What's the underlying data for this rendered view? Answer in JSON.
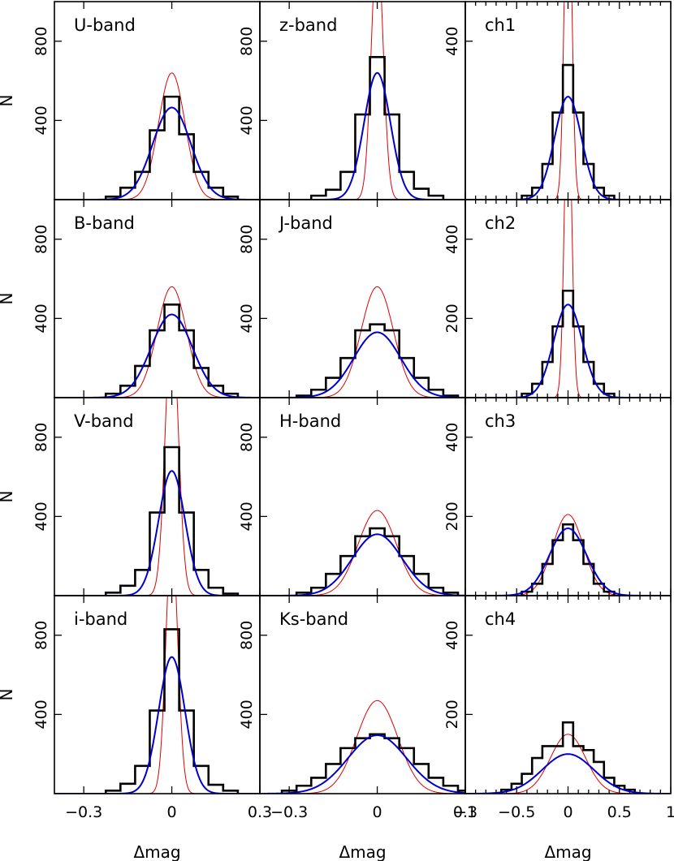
{
  "colors": {
    "histogram": "#000000",
    "fit_blue": "#0000cc",
    "fit_red": "#e00000",
    "background": "#ffffff"
  },
  "axis_labels": {
    "x": "Δmag",
    "y": "N"
  },
  "chart_data": [
    {
      "type": "histogram",
      "label": "U-band",
      "column": 0,
      "row": 0,
      "xlim": [
        -0.4,
        0.3
      ],
      "ylim": [
        0,
        1000
      ],
      "yticks": [
        400,
        800
      ],
      "xticks": [
        -0.3,
        0,
        0.3
      ],
      "xtick_labels": [
        "−0.3",
        "0",
        "0.3"
      ],
      "bin_edges": [
        -0.225,
        -0.175,
        -0.125,
        -0.075,
        -0.025,
        0.025,
        0.075,
        0.125,
        0.175,
        0.225
      ],
      "counts": [
        15,
        60,
        140,
        350,
        520,
        330,
        140,
        60,
        15
      ],
      "blue_fit": {
        "amp": 465,
        "sigma": 0.065
      },
      "red_fit": {
        "amp": 640,
        "sigma": 0.045
      }
    },
    {
      "type": "histogram",
      "label": "B-band",
      "column": 0,
      "row": 1,
      "xlim": [
        -0.4,
        0.3
      ],
      "ylim": [
        0,
        1000
      ],
      "yticks": [
        400,
        800
      ],
      "xticks": [
        -0.3,
        0,
        0.3
      ],
      "xtick_labels": [
        "−0.3",
        "0",
        "0.3"
      ],
      "bin_edges": [
        -0.225,
        -0.175,
        -0.125,
        -0.075,
        -0.025,
        0.025,
        0.075,
        0.125,
        0.175,
        0.225
      ],
      "counts": [
        20,
        60,
        160,
        340,
        470,
        340,
        150,
        60,
        20
      ],
      "blue_fit": {
        "amp": 420,
        "sigma": 0.07
      },
      "red_fit": {
        "amp": 560,
        "sigma": 0.05
      }
    },
    {
      "type": "histogram",
      "label": "V-band",
      "column": 0,
      "row": 2,
      "xlim": [
        -0.4,
        0.3
      ],
      "ylim": [
        0,
        1000
      ],
      "yticks": [
        400,
        800
      ],
      "xticks": [
        -0.3,
        0,
        0.3
      ],
      "xtick_labels": [
        "−0.3",
        "0",
        "0.3"
      ],
      "bin_edges": [
        -0.225,
        -0.175,
        -0.125,
        -0.075,
        -0.025,
        0.025,
        0.075,
        0.125,
        0.175,
        0.225
      ],
      "counts": [
        15,
        50,
        130,
        420,
        750,
        420,
        130,
        40,
        10
      ],
      "blue_fit": {
        "amp": 630,
        "sigma": 0.045
      },
      "red_fit": {
        "amp": 1400,
        "sigma": 0.022
      }
    },
    {
      "type": "histogram",
      "label": "i-band",
      "column": 0,
      "row": 3,
      "xlim": [
        -0.4,
        0.3
      ],
      "ylim": [
        0,
        1000
      ],
      "yticks": [
        400,
        800
      ],
      "xticks": [
        -0.3,
        0,
        0.3
      ],
      "xtick_labels": [
        "−0.3",
        "0",
        "0.3"
      ],
      "bin_edges": [
        -0.225,
        -0.175,
        -0.125,
        -0.075,
        -0.025,
        0.025,
        0.075,
        0.125,
        0.175,
        0.225
      ],
      "counts": [
        15,
        50,
        140,
        420,
        830,
        420,
        140,
        45,
        15
      ],
      "blue_fit": {
        "amp": 690,
        "sigma": 0.045
      },
      "red_fit": {
        "amp": 1300,
        "sigma": 0.02
      }
    },
    {
      "type": "histogram",
      "label": "z-band",
      "column": 1,
      "row": 0,
      "xlim": [
        -0.4,
        0.3
      ],
      "ylim": [
        0,
        1000
      ],
      "yticks": [
        400,
        800
      ],
      "xticks": [
        -0.3,
        0,
        0.3
      ],
      "xtick_labels": [
        "−0.3",
        "0",
        "0.3"
      ],
      "bin_edges": [
        -0.225,
        -0.175,
        -0.125,
        -0.075,
        -0.025,
        0.025,
        0.075,
        0.125,
        0.175,
        0.225
      ],
      "counts": [
        20,
        50,
        140,
        430,
        720,
        430,
        140,
        55,
        20
      ],
      "blue_fit": {
        "amp": 640,
        "sigma": 0.045
      },
      "red_fit": {
        "amp": 1300,
        "sigma": 0.02
      }
    },
    {
      "type": "histogram",
      "label": "J-band",
      "column": 1,
      "row": 1,
      "xlim": [
        -0.4,
        0.3
      ],
      "ylim": [
        0,
        1000
      ],
      "yticks": [
        400,
        800
      ],
      "xticks": [
        -0.3,
        0,
        0.3
      ],
      "xtick_labels": [
        "−0.3",
        "0",
        "0.3"
      ],
      "bin_edges": [
        -0.275,
        -0.225,
        -0.175,
        -0.125,
        -0.075,
        -0.025,
        0.025,
        0.075,
        0.125,
        0.175,
        0.225,
        0.275
      ],
      "counts": [
        10,
        40,
        100,
        200,
        340,
        370,
        340,
        200,
        100,
        40,
        10
      ],
      "blue_fit": {
        "amp": 330,
        "sigma": 0.08
      },
      "red_fit": {
        "amp": 560,
        "sigma": 0.055
      }
    },
    {
      "type": "histogram",
      "label": "H-band",
      "column": 1,
      "row": 2,
      "xlim": [
        -0.4,
        0.3
      ],
      "ylim": [
        0,
        1000
      ],
      "yticks": [
        400,
        800
      ],
      "xticks": [
        -0.3,
        0,
        0.3
      ],
      "xtick_labels": [
        "−0.3",
        "0",
        "0.3"
      ],
      "bin_edges": [
        -0.275,
        -0.225,
        -0.175,
        -0.125,
        -0.075,
        -0.025,
        0.025,
        0.075,
        0.125,
        0.175,
        0.225,
        0.275
      ],
      "counts": [
        15,
        40,
        110,
        200,
        300,
        340,
        300,
        200,
        110,
        40,
        15
      ],
      "blue_fit": {
        "amp": 310,
        "sigma": 0.085
      },
      "red_fit": {
        "amp": 430,
        "sigma": 0.065
      }
    },
    {
      "type": "histogram",
      "label": "Ks-band",
      "column": 1,
      "row": 3,
      "xlim": [
        -0.4,
        0.3
      ],
      "ylim": [
        0,
        1000
      ],
      "yticks": [
        400,
        800
      ],
      "xticks": [
        -0.3,
        0,
        0.3
      ],
      "xtick_labels": [
        "−0.3",
        "0",
        "0.3"
      ],
      "bin_edges": [
        -0.325,
        -0.275,
        -0.225,
        -0.175,
        -0.125,
        -0.075,
        -0.025,
        0.025,
        0.075,
        0.125,
        0.175,
        0.225,
        0.275,
        0.325
      ],
      "counts": [
        15,
        40,
        80,
        150,
        230,
        280,
        300,
        280,
        230,
        150,
        80,
        40,
        15
      ],
      "blue_fit": {
        "amp": 295,
        "sigma": 0.1
      },
      "red_fit": {
        "amp": 470,
        "sigma": 0.07
      }
    },
    {
      "type": "histogram",
      "label": "ch1",
      "column": 2,
      "row": 0,
      "xlim": [
        -1,
        1
      ],
      "ylim": [
        0,
        500
      ],
      "yticks": [
        400
      ],
      "xticks": [
        -1,
        -0.5,
        0,
        0.5,
        1
      ],
      "xtick_labels": [
        "−1",
        "−0.5",
        "0",
        "0.5",
        "1"
      ],
      "minor_xticks": [
        -0.9,
        -0.8,
        -0.7,
        -0.6,
        -0.4,
        -0.3,
        -0.2,
        -0.1,
        0.1,
        0.2,
        0.3,
        0.4,
        0.6,
        0.7,
        0.8,
        0.9
      ],
      "bin_edges": [
        -0.45,
        -0.35,
        -0.25,
        -0.15,
        -0.05,
        0.05,
        0.15,
        0.25,
        0.35,
        0.45
      ],
      "counts": [
        10,
        30,
        90,
        220,
        340,
        220,
        90,
        30,
        10
      ],
      "blue_fit": {
        "amp": 260,
        "sigma": 0.13
      },
      "red_fit": {
        "amp": 900,
        "sigma": 0.035
      }
    },
    {
      "type": "histogram",
      "label": "ch2",
      "column": 2,
      "row": 1,
      "xlim": [
        -1,
        1
      ],
      "ylim": [
        0,
        500
      ],
      "yticks": [
        200,
        400
      ],
      "xticks": [
        -1,
        -0.5,
        0,
        0.5,
        1
      ],
      "xtick_labels": [
        "−1",
        "−0.5",
        "0",
        "0.5",
        "1"
      ],
      "minor_xticks": [
        -0.9,
        -0.8,
        -0.7,
        -0.6,
        -0.4,
        -0.3,
        -0.2,
        -0.1,
        0.1,
        0.2,
        0.3,
        0.4,
        0.6,
        0.7,
        0.8,
        0.9
      ],
      "bin_edges": [
        -0.45,
        -0.35,
        -0.25,
        -0.15,
        -0.05,
        0.05,
        0.15,
        0.25,
        0.35,
        0.45
      ],
      "counts": [
        10,
        35,
        90,
        180,
        270,
        180,
        90,
        35,
        10
      ],
      "blue_fit": {
        "amp": 235,
        "sigma": 0.14
      },
      "red_fit": {
        "amp": 800,
        "sigma": 0.035
      }
    },
    {
      "type": "histogram",
      "label": "ch3",
      "column": 2,
      "row": 2,
      "xlim": [
        -1,
        1
      ],
      "ylim": [
        0,
        500
      ],
      "yticks": [
        200,
        400
      ],
      "xticks": [
        -1,
        -0.5,
        0,
        0.5,
        1
      ],
      "xtick_labels": [
        "−1",
        "−0.5",
        "0",
        "0.5",
        "1"
      ],
      "minor_xticks": [
        -0.9,
        -0.8,
        -0.7,
        -0.6,
        -0.4,
        -0.3,
        -0.2,
        -0.1,
        0.1,
        0.2,
        0.3,
        0.4,
        0.6,
        0.7,
        0.8,
        0.9
      ],
      "bin_edges": [
        -0.45,
        -0.35,
        -0.25,
        -0.15,
        -0.05,
        0.05,
        0.15,
        0.25,
        0.35,
        0.45
      ],
      "counts": [
        10,
        30,
        80,
        140,
        180,
        140,
        80,
        30,
        10
      ],
      "blue_fit": {
        "amp": 170,
        "sigma": 0.18
      },
      "red_fit": {
        "amp": 205,
        "sigma": 0.15
      }
    },
    {
      "type": "histogram",
      "label": "ch4",
      "column": 2,
      "row": 3,
      "xlim": [
        -1,
        1
      ],
      "ylim": [
        0,
        500
      ],
      "yticks": [
        200,
        400
      ],
      "xticks": [
        -1,
        -0.5,
        0,
        0.5,
        1
      ],
      "xtick_labels": [
        "−1",
        "−0.5",
        "0",
        "0.5",
        "1"
      ],
      "minor_xticks": [
        -0.9,
        -0.8,
        -0.7,
        -0.6,
        -0.4,
        -0.3,
        -0.2,
        -0.1,
        0.1,
        0.2,
        0.3,
        0.4,
        0.6,
        0.7,
        0.8,
        0.9
      ],
      "bin_edges": [
        -0.65,
        -0.55,
        -0.45,
        -0.35,
        -0.25,
        -0.15,
        -0.05,
        0.05,
        0.15,
        0.25,
        0.35,
        0.45,
        0.55,
        0.65
      ],
      "counts": [
        10,
        25,
        50,
        90,
        120,
        120,
        180,
        120,
        110,
        80,
        40,
        20,
        10
      ],
      "blue_fit": {
        "amp": 100,
        "sigma": 0.25
      },
      "red_fit": {
        "amp": 150,
        "sigma": 0.17
      }
    }
  ]
}
